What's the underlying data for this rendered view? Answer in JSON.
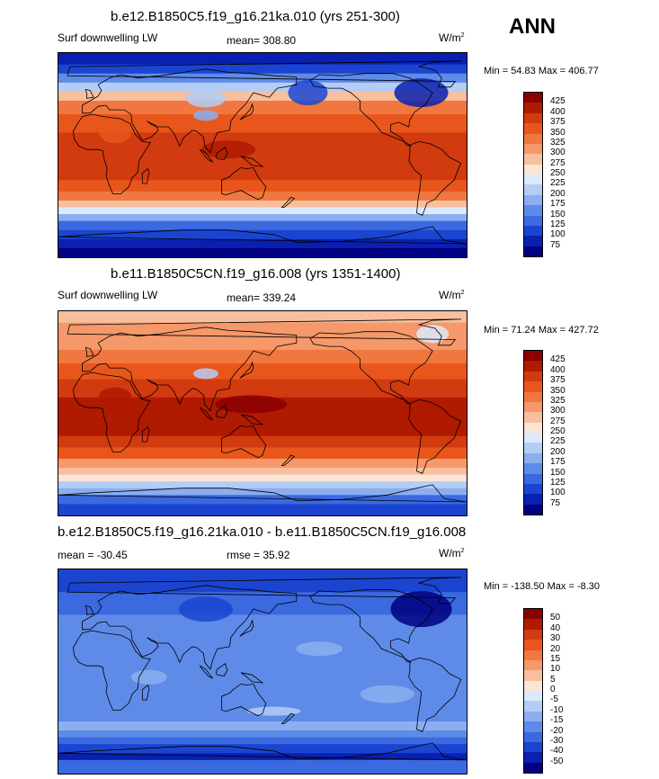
{
  "season": "ANN",
  "panels": [
    {
      "title": "b.e12.B1850C5.f19_g16.21ka.010 (yrs 251-300)",
      "left_label": "Surf downwelling LW",
      "mid_label": "mean= 308.80",
      "units": "W/m",
      "minmax": "Min =  54.83 Max = 406.77",
      "levels": [
        "425",
        "400",
        "375",
        "350",
        "325",
        "300",
        "275",
        "250",
        "225",
        "200",
        "175",
        "150",
        "125",
        "100",
        "75"
      ],
      "colors": [
        "#8b0000",
        "#b01a00",
        "#d23a0f",
        "#e8561c",
        "#f0773f",
        "#f5986a",
        "#f8bf9e",
        "#fbe5d6",
        "#dce9fa",
        "#b3cdf5",
        "#8aaef0",
        "#5f8be8",
        "#3b69e0",
        "#1b45d0",
        "#0920b0",
        "#000080"
      ],
      "map_type": "glacial"
    },
    {
      "title": "b.e11.B1850C5CN.f19_g16.008 (yrs 1351-1400)",
      "left_label": "Surf downwelling LW",
      "mid_label": "mean= 339.24",
      "units": "W/m",
      "minmax": "Min =  71.24 Max = 427.72",
      "levels": [
        "425",
        "400",
        "375",
        "350",
        "325",
        "300",
        "275",
        "250",
        "225",
        "200",
        "175",
        "150",
        "125",
        "100",
        "75"
      ],
      "colors": [
        "#8b0000",
        "#b01a00",
        "#d23a0f",
        "#e8561c",
        "#f0773f",
        "#f5986a",
        "#f8bf9e",
        "#fbe5d6",
        "#dce9fa",
        "#b3cdf5",
        "#8aaef0",
        "#5f8be8",
        "#3b69e0",
        "#1b45d0",
        "#0920b0",
        "#000080"
      ],
      "map_type": "preindustrial"
    },
    {
      "title": "b.e12.B1850C5.f19_g16.21ka.010 - b.e11.B1850C5CN.f19_g16.008",
      "left_label": "mean = -30.45",
      "mid_label": "rmse =  35.92",
      "units": "W/m",
      "minmax": "Min = -138.50 Max =  -8.30",
      "levels": [
        "50",
        "40",
        "30",
        "20",
        "15",
        "10",
        "5",
        "0",
        "-5",
        "-10",
        "-15",
        "-20",
        "-30",
        "-40",
        "-50"
      ],
      "colors": [
        "#8b0000",
        "#b01a00",
        "#d23a0f",
        "#e8561c",
        "#f0773f",
        "#f5986a",
        "#f8bf9e",
        "#fbe5d6",
        "#dce9fa",
        "#b3cdf5",
        "#8aaef0",
        "#5f8be8",
        "#3b69e0",
        "#1b45d0",
        "#0920b0",
        "#000080"
      ],
      "map_type": "difference"
    }
  ]
}
